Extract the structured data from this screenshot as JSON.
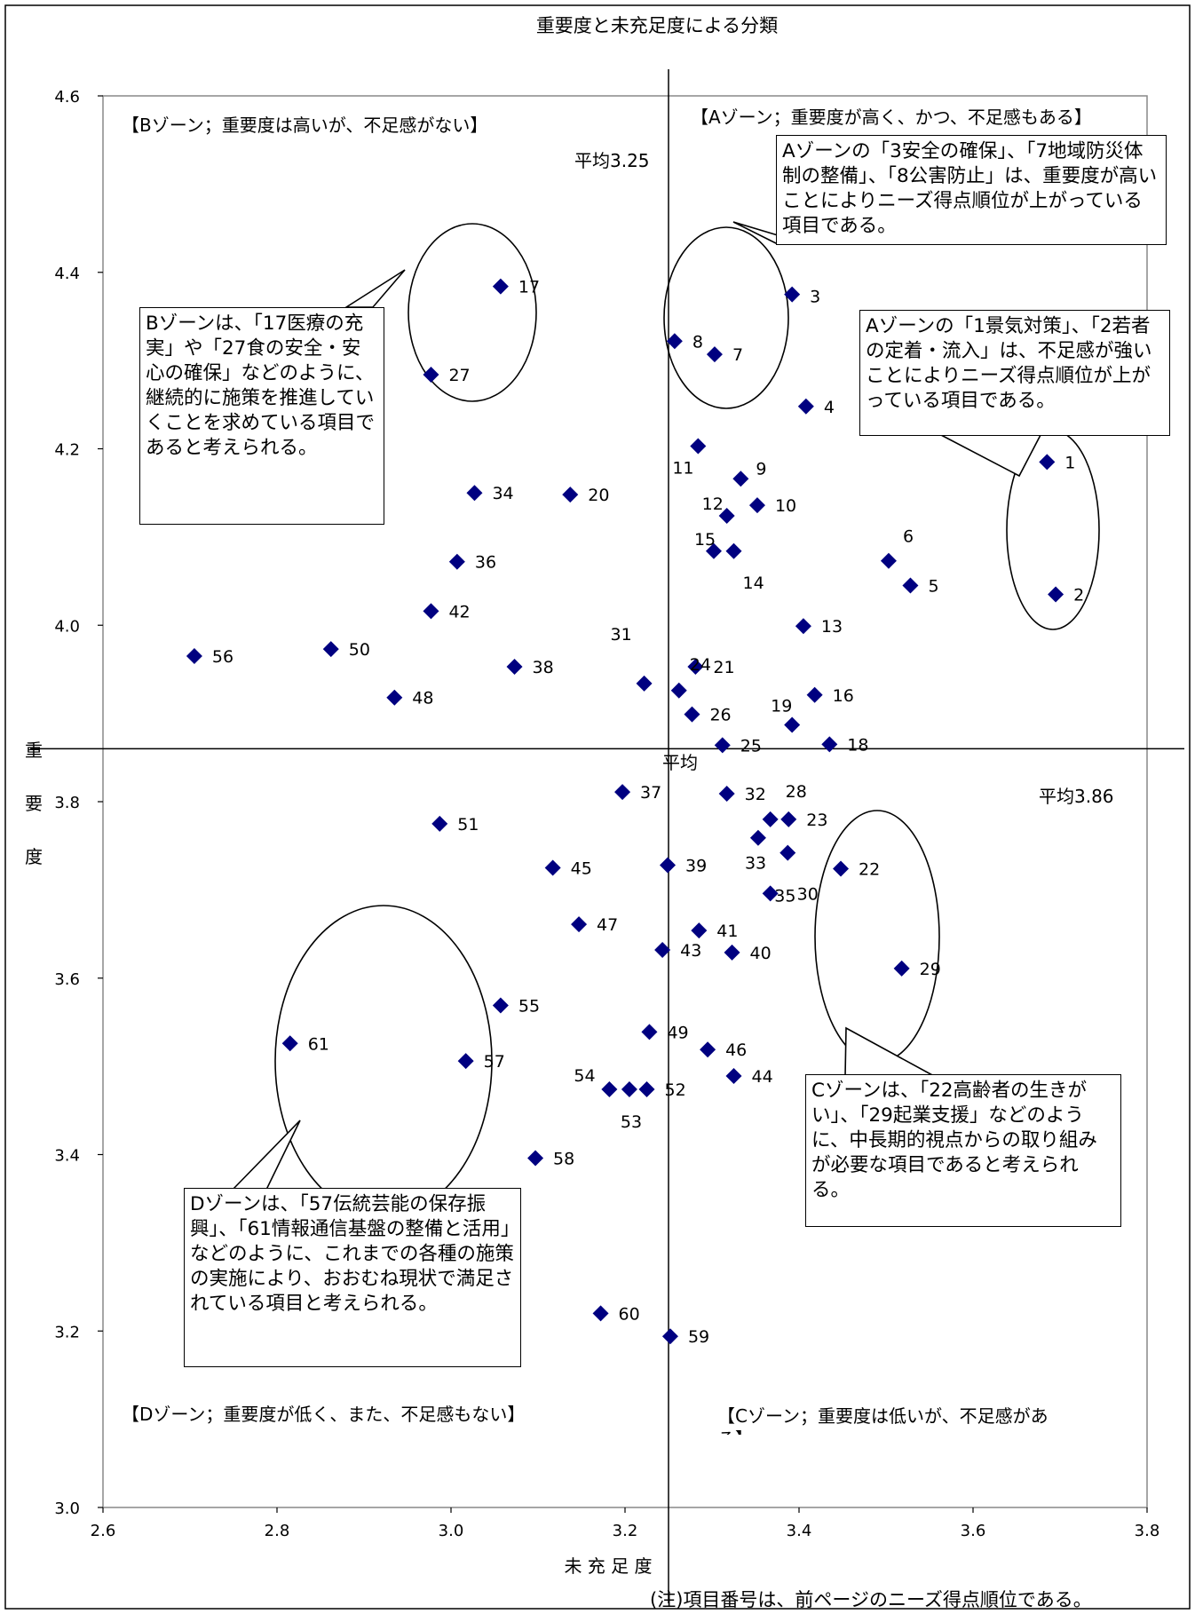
{
  "chart_data": {
    "type": "scatter",
    "title": "重要度と未充足度による分類",
    "xlabel": "未 充 足 度",
    "ylabel": "重要度",
    "xlim": [
      2.6,
      3.8
    ],
    "ylim": [
      3.0,
      4.6
    ],
    "xticks": [
      "2.6",
      "2.8",
      "3.0",
      "3.2",
      "3.4",
      "3.6",
      "3.8"
    ],
    "yticks": [
      "3.0",
      "3.2",
      "3.4",
      "3.6",
      "3.8",
      "4.0",
      "4.2",
      "4.4",
      "4.6"
    ],
    "avg_x": 3.25,
    "avg_y": 3.86,
    "avg_x_label": "平均3.25",
    "avg_y_label": "平均3.86",
    "avg_center_label": "平均",
    "marker_color": "#000080",
    "points": [
      {
        "id": "1",
        "x": 3.685,
        "y": 4.185
      },
      {
        "id": "2",
        "x": 3.695,
        "y": 4.035
      },
      {
        "id": "3",
        "x": 3.392,
        "y": 4.375
      },
      {
        "id": "4",
        "x": 3.408,
        "y": 4.248
      },
      {
        "id": "5",
        "x": 3.528,
        "y": 4.045
      },
      {
        "id": "6",
        "x": 3.503,
        "y": 4.073
      },
      {
        "id": "7",
        "x": 3.303,
        "y": 4.307
      },
      {
        "id": "8",
        "x": 3.257,
        "y": 4.322
      },
      {
        "id": "9",
        "x": 3.333,
        "y": 4.166
      },
      {
        "id": "10",
        "x": 3.352,
        "y": 4.136
      },
      {
        "id": "11",
        "x": 3.284,
        "y": 4.203
      },
      {
        "id": "12",
        "x": 3.317,
        "y": 4.124
      },
      {
        "id": "13",
        "x": 3.405,
        "y": 3.999
      },
      {
        "id": "14",
        "x": 3.325,
        "y": 4.084
      },
      {
        "id": "15",
        "x": 3.302,
        "y": 4.084
      },
      {
        "id": "16",
        "x": 3.418,
        "y": 3.921
      },
      {
        "id": "17",
        "x": 3.057,
        "y": 4.384
      },
      {
        "id": "18",
        "x": 3.435,
        "y": 3.865
      },
      {
        "id": "19",
        "x": 3.392,
        "y": 3.887
      },
      {
        "id": "20",
        "x": 3.137,
        "y": 4.148
      },
      {
        "id": "21",
        "x": 3.281,
        "y": 3.953
      },
      {
        "id": "22",
        "x": 3.448,
        "y": 3.724
      },
      {
        "id": "23",
        "x": 3.388,
        "y": 3.78
      },
      {
        "id": "24",
        "x": 3.262,
        "y": 3.926
      },
      {
        "id": "25",
        "x": 3.312,
        "y": 3.864
      },
      {
        "id": "26",
        "x": 3.277,
        "y": 3.899
      },
      {
        "id": "27",
        "x": 2.977,
        "y": 4.284
      },
      {
        "id": "28",
        "x": 3.367,
        "y": 3.78
      },
      {
        "id": "29",
        "x": 3.518,
        "y": 3.611
      },
      {
        "id": "30",
        "x": 3.367,
        "y": 3.696
      },
      {
        "id": "31",
        "x": 3.222,
        "y": 3.934
      },
      {
        "id": "32",
        "x": 3.317,
        "y": 3.809
      },
      {
        "id": "33",
        "x": 3.353,
        "y": 3.759
      },
      {
        "id": "34",
        "x": 3.027,
        "y": 4.15
      },
      {
        "id": "35",
        "x": 3.387,
        "y": 3.742
      },
      {
        "id": "36",
        "x": 3.007,
        "y": 4.072
      },
      {
        "id": "37",
        "x": 3.197,
        "y": 3.811
      },
      {
        "id": "38",
        "x": 3.073,
        "y": 3.953
      },
      {
        "id": "39",
        "x": 3.249,
        "y": 3.728
      },
      {
        "id": "40",
        "x": 3.323,
        "y": 3.629
      },
      {
        "id": "41",
        "x": 3.285,
        "y": 3.654
      },
      {
        "id": "42",
        "x": 2.977,
        "y": 4.016
      },
      {
        "id": "43",
        "x": 3.243,
        "y": 3.632
      },
      {
        "id": "44",
        "x": 3.325,
        "y": 3.489
      },
      {
        "id": "45",
        "x": 3.117,
        "y": 3.725
      },
      {
        "id": "46",
        "x": 3.295,
        "y": 3.519
      },
      {
        "id": "47",
        "x": 3.147,
        "y": 3.661
      },
      {
        "id": "48",
        "x": 2.935,
        "y": 3.918
      },
      {
        "id": "49",
        "x": 3.228,
        "y": 3.539
      },
      {
        "id": "50",
        "x": 2.862,
        "y": 3.973
      },
      {
        "id": "51",
        "x": 2.987,
        "y": 3.775
      },
      {
        "id": "52",
        "x": 3.225,
        "y": 3.474
      },
      {
        "id": "53",
        "x": 3.205,
        "y": 3.474
      },
      {
        "id": "54",
        "x": 3.182,
        "y": 3.474
      },
      {
        "id": "55",
        "x": 3.057,
        "y": 3.569
      },
      {
        "id": "56",
        "x": 2.705,
        "y": 3.965
      },
      {
        "id": "57",
        "x": 3.017,
        "y": 3.506
      },
      {
        "id": "58",
        "x": 3.097,
        "y": 3.396
      },
      {
        "id": "59",
        "x": 3.252,
        "y": 3.194
      },
      {
        "id": "60",
        "x": 3.172,
        "y": 3.22
      },
      {
        "id": "61",
        "x": 2.815,
        "y": 3.526
      }
    ]
  },
  "zones": {
    "a": "【Aゾーン；重要度が高く、かつ、不足感もある】",
    "b": "【Bゾーン；重要度は高いが、不足感がない】",
    "c": "【Cゾーン；重要度は低いが、不足感があ",
    "c_overflow": "る】",
    "d": "【Dゾーン；重要度が低く、また、不足感もない】"
  },
  "callouts": {
    "a_top": "Aゾーンの「3安全の確保」、「7地域防災体制の整備」、「8公害防止」は、重要度が高いことによりニーズ得点順位が上がっている項目である。",
    "a_right": "Aゾーンの「1景気対策」、「2若者の定着・流入」は、不足感が強いことによりニーズ得点順位が上がっている項目である。",
    "b": "Bゾーンは、「17医療の充実」や「27食の安全・安心の確保」などのように、継続的に施策を推進していくことを求めている項目であると考えられる。",
    "c": "Cゾーンは、「22高齢者の生きがい」、「29起業支援」などのように、中長期的視点からの取り組みが必要な項目であると考えられる。",
    "d": "Dゾーンは、「57伝統芸能の保存振興」、「61情報通信基盤の整備と活用」などのように、これまでの各種の施策の実施により、おおむね現状で満足されている項目と考えられる。"
  },
  "note": "(注)項目番号は、前ページのニーズ得点順位である。"
}
